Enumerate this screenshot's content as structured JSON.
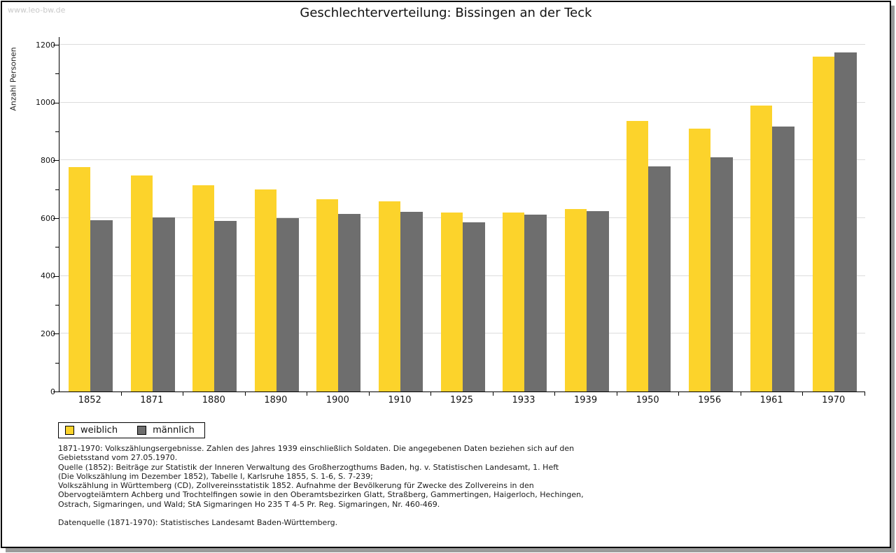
{
  "watermark": "www.leo-bw.de",
  "chart_data": {
    "type": "bar",
    "title": "Geschlechterverteilung: Bissingen an der Teck",
    "xlabel": "",
    "ylabel": "Anzahl Personen",
    "ylim": [
      0,
      1200
    ],
    "ytick_step": 200,
    "ytick_minor_step": 100,
    "grid": true,
    "legend_position": "bottom-left",
    "categories": [
      "1852",
      "1871",
      "1880",
      "1890",
      "1900",
      "1910",
      "1925",
      "1933",
      "1939",
      "1950",
      "1956",
      "1961",
      "1970"
    ],
    "series": [
      {
        "name": "weiblich",
        "color": "#FCD32B",
        "values": [
          777,
          747,
          713,
          700,
          666,
          658,
          619,
          619,
          631,
          936,
          909,
          990,
          1160
        ]
      },
      {
        "name": "männlich",
        "color": "#6E6E6E",
        "values": [
          593,
          602,
          590,
          600,
          614,
          621,
          586,
          613,
          624,
          778,
          810,
          916,
          1173
        ]
      }
    ]
  },
  "legend": {
    "items": [
      {
        "label": "weiblich",
        "color": "#FCD32B"
      },
      {
        "label": "männlich",
        "color": "#6E6E6E"
      }
    ]
  },
  "footnotes": {
    "lines": [
      "1871-1970: Volkszählungsergebnisse. Zahlen des Jahres 1939 einschließlich Soldaten. Die angegebenen Daten beziehen sich auf den",
      "Gebietsstand vom 27.05.1970.",
      "Quelle (1852): Beiträge zur Statistik der Inneren Verwaltung des Großherzogthums Baden, hg. v. Statistischen Landesamt, 1. Heft",
      "(Die Volkszählung im Dezember 1852), Tabelle I, Karlsruhe 1855, S. 1-6, S. 7-239;",
      "Volkszählung in Württemberg (CD), Zollvereinsstatistik 1852. Aufnahme der Bevölkerung für Zwecke des Zollvereins in den",
      "Obervogteiämtern Achberg und Trochtelfingen sowie in den Oberamtsbezirken Glatt, Straßberg, Gammertingen, Haigerloch, Hechingen,",
      "Ostrach, Sigmaringen, und Wald; StA Sigmaringen Ho 235 T 4-5 Pr. Reg. Sigmaringen, Nr. 460-469."
    ],
    "source": "Datenquelle (1871-1970): Statistisches Landesamt Baden-Württemberg."
  },
  "colors": {
    "gridline": "#DCDCDC",
    "axis": "#000000",
    "watermark": "#C9C9C9",
    "shadow": "#9B9B9B"
  }
}
